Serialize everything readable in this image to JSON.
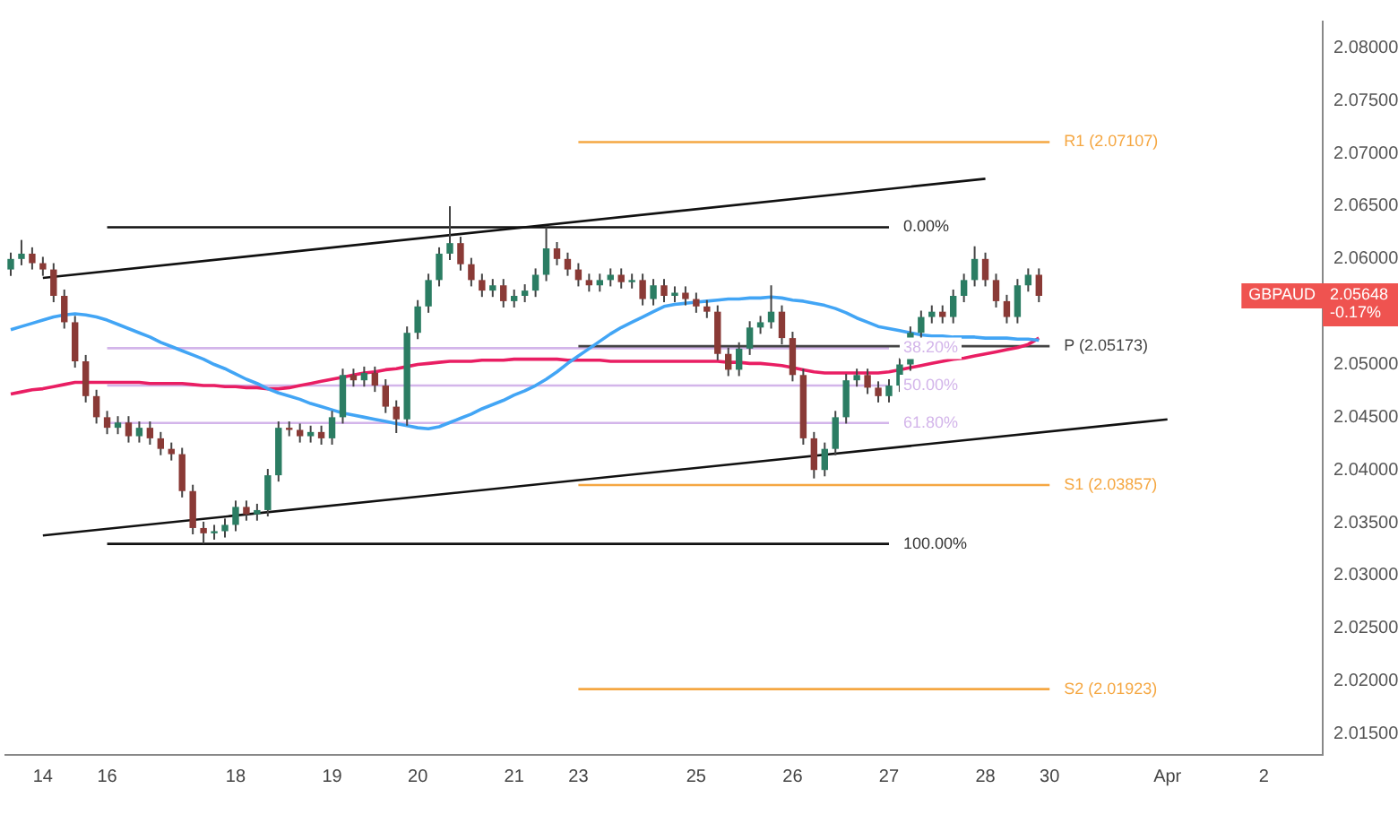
{
  "chart_data": {
    "type": "candlestick",
    "categories": [
      null,
      null,
      null,
      "14",
      null,
      null,
      null,
      null,
      null,
      "16",
      null,
      null,
      null,
      null,
      null,
      null,
      null,
      null,
      null,
      null,
      null,
      "18",
      null,
      null,
      null,
      null,
      null,
      null,
      null,
      null,
      "19",
      null,
      null,
      null,
      null,
      null,
      null,
      null,
      "20",
      null,
      null,
      null,
      null,
      null,
      null,
      null,
      null,
      "21",
      null,
      null,
      null,
      null,
      null,
      "23",
      null,
      null,
      null,
      null,
      null,
      null,
      null,
      null,
      null,
      null,
      "25",
      null,
      null,
      null,
      null,
      null,
      null,
      null,
      null,
      "26",
      null,
      null,
      null,
      null,
      null,
      null,
      null,
      null,
      "27",
      null,
      null,
      null,
      null,
      null,
      null,
      null,
      null,
      "28",
      null,
      null,
      null,
      null,
      null,
      "30",
      null,
      null,
      null,
      null,
      null,
      null,
      null,
      null,
      null,
      null,
      "Apr",
      null,
      null,
      null,
      null,
      null,
      null,
      null,
      null,
      "2",
      null,
      null,
      null,
      null,
      null
    ],
    "ohlc": [
      [
        2.059,
        2.0606,
        2.0584,
        2.06
      ],
      [
        2.06,
        2.0618,
        2.0594,
        2.0605
      ],
      [
        2.0605,
        2.0611,
        2.059,
        2.0596
      ],
      [
        2.0596,
        2.0602,
        2.0584,
        2.059
      ],
      [
        2.059,
        2.0596,
        2.0559,
        2.0565
      ],
      [
        2.0565,
        2.0571,
        2.0534,
        2.054
      ],
      [
        2.054,
        2.0546,
        2.0497,
        2.0503
      ],
      [
        2.0503,
        2.0509,
        2.0464,
        2.047
      ],
      [
        2.047,
        2.0476,
        2.0444,
        2.045
      ],
      [
        2.045,
        2.0456,
        2.0434,
        2.044
      ],
      [
        2.044,
        2.0451,
        2.0434,
        2.0445
      ],
      [
        2.0445,
        2.0451,
        2.0426,
        2.0432
      ],
      [
        2.0432,
        2.0446,
        2.0426,
        2.044
      ],
      [
        2.044,
        2.0446,
        2.0424,
        2.043
      ],
      [
        2.043,
        2.0436,
        2.0414,
        2.042
      ],
      [
        2.042,
        2.0426,
        2.0409,
        2.0415
      ],
      [
        2.0415,
        2.0421,
        2.0374,
        2.038
      ],
      [
        2.038,
        2.0386,
        2.0339,
        2.0345
      ],
      [
        2.0345,
        2.0351,
        2.033,
        2.034
      ],
      [
        2.034,
        2.0348,
        2.0334,
        2.0342
      ],
      [
        2.0342,
        2.0354,
        2.0336,
        2.0348
      ],
      [
        2.0348,
        2.0371,
        2.0342,
        2.0365
      ],
      [
        2.0365,
        2.0371,
        2.0352,
        2.0358
      ],
      [
        2.0358,
        2.0368,
        2.0352,
        2.0362
      ],
      [
        2.0362,
        2.0401,
        2.0356,
        2.0395
      ],
      [
        2.0395,
        2.0446,
        2.0389,
        2.044
      ],
      [
        2.044,
        2.0446,
        2.0432,
        2.0438
      ],
      [
        2.0438,
        2.0444,
        2.0426,
        2.0432
      ],
      [
        2.0432,
        2.0442,
        2.0426,
        2.0436
      ],
      [
        2.0436,
        2.0442,
        2.0424,
        2.043
      ],
      [
        2.043,
        2.0456,
        2.0424,
        2.045
      ],
      [
        2.045,
        2.0496,
        2.0444,
        2.049
      ],
      [
        2.049,
        2.0496,
        2.0479,
        2.0485
      ],
      [
        2.0485,
        2.0498,
        2.0479,
        2.0492
      ],
      [
        2.0492,
        2.0498,
        2.0474,
        2.048
      ],
      [
        2.048,
        2.0486,
        2.0454,
        2.046
      ],
      [
        2.046,
        2.0466,
        2.0435,
        2.0448
      ],
      [
        2.0448,
        2.0536,
        2.0442,
        2.053
      ],
      [
        2.053,
        2.0561,
        2.0524,
        2.0555
      ],
      [
        2.0555,
        2.0586,
        2.0549,
        2.058
      ],
      [
        2.058,
        2.0611,
        2.0574,
        2.0605
      ],
      [
        2.0605,
        2.065,
        2.0599,
        2.0615
      ],
      [
        2.0615,
        2.0621,
        2.0589,
        2.0595
      ],
      [
        2.0595,
        2.0601,
        2.0574,
        2.058
      ],
      [
        2.058,
        2.0586,
        2.0564,
        2.057
      ],
      [
        2.057,
        2.0581,
        2.0564,
        2.0575
      ],
      [
        2.0575,
        2.0581,
        2.0554,
        2.056
      ],
      [
        2.056,
        2.0571,
        2.0554,
        2.0565
      ],
      [
        2.0565,
        2.0576,
        2.0559,
        2.057
      ],
      [
        2.057,
        2.0591,
        2.0564,
        2.0585
      ],
      [
        2.0585,
        2.063,
        2.0579,
        2.061
      ],
      [
        2.061,
        2.0616,
        2.0594,
        2.06
      ],
      [
        2.06,
        2.0606,
        2.0584,
        2.059
      ],
      [
        2.059,
        2.0596,
        2.0574,
        2.058
      ],
      [
        2.058,
        2.0586,
        2.0569,
        2.0575
      ],
      [
        2.0575,
        2.0586,
        2.0569,
        2.058
      ],
      [
        2.058,
        2.0591,
        2.0574,
        2.0585
      ],
      [
        2.0585,
        2.0591,
        2.0572,
        2.0578
      ],
      [
        2.0578,
        2.0586,
        2.0572,
        2.058
      ],
      [
        2.058,
        2.0586,
        2.0556,
        2.0562
      ],
      [
        2.0562,
        2.0581,
        2.0556,
        2.0575
      ],
      [
        2.0575,
        2.0581,
        2.0559,
        2.0565
      ],
      [
        2.0565,
        2.0574,
        2.0559,
        2.0568
      ],
      [
        2.0568,
        2.0574,
        2.0556,
        2.0562
      ],
      [
        2.0562,
        2.0568,
        2.0549,
        2.0555
      ],
      [
        2.0555,
        2.0561,
        2.0544,
        2.055
      ],
      [
        2.055,
        2.0556,
        2.0504,
        2.051
      ],
      [
        2.051,
        2.0516,
        2.0489,
        2.0495
      ],
      [
        2.0495,
        2.0521,
        2.0489,
        2.0515
      ],
      [
        2.0515,
        2.0541,
        2.0509,
        2.0535
      ],
      [
        2.0535,
        2.0546,
        2.0529,
        2.054
      ],
      [
        2.054,
        2.0575,
        2.0534,
        2.055
      ],
      [
        2.055,
        2.0556,
        2.0519,
        2.0525
      ],
      [
        2.0525,
        2.0531,
        2.0484,
        2.049
      ],
      [
        2.049,
        2.0496,
        2.0424,
        2.043
      ],
      [
        2.043,
        2.0436,
        2.0392,
        2.04
      ],
      [
        2.04,
        2.0426,
        2.0394,
        2.042
      ],
      [
        2.042,
        2.0456,
        2.0414,
        2.045
      ],
      [
        2.045,
        2.0491,
        2.0444,
        2.0485
      ],
      [
        2.0485,
        2.0496,
        2.0479,
        2.049
      ],
      [
        2.049,
        2.0496,
        2.0472,
        2.0478
      ],
      [
        2.0478,
        2.0484,
        2.0464,
        2.047
      ],
      [
        2.047,
        2.0486,
        2.0464,
        2.048
      ],
      [
        2.048,
        2.0506,
        2.0474,
        2.05
      ],
      [
        2.05,
        2.0536,
        2.0494,
        2.053
      ],
      [
        2.053,
        2.0551,
        2.0524,
        2.0545
      ],
      [
        2.0545,
        2.0556,
        2.0539,
        2.055
      ],
      [
        2.055,
        2.0556,
        2.0539,
        2.0545
      ],
      [
        2.0545,
        2.0571,
        2.0539,
        2.0565
      ],
      [
        2.0565,
        2.0586,
        2.0559,
        2.058
      ],
      [
        2.058,
        2.0612,
        2.0574,
        2.06
      ],
      [
        2.06,
        2.0606,
        2.0574,
        2.058
      ],
      [
        2.058,
        2.0586,
        2.0554,
        2.056
      ],
      [
        2.056,
        2.0566,
        2.0539,
        2.0545
      ],
      [
        2.0545,
        2.0581,
        2.0539,
        2.0575
      ],
      [
        2.0575,
        2.0591,
        2.0569,
        2.0585
      ],
      [
        2.0585,
        2.0591,
        2.0559,
        2.0565
      ],
      null,
      null,
      null,
      null,
      null,
      null,
      null,
      null,
      null,
      null,
      null,
      null,
      null,
      null,
      null,
      null,
      null,
      null,
      null,
      null,
      null,
      null,
      null,
      null,
      null,
      null
    ],
    "series": [
      {
        "type": "line",
        "color": "#42a5f5",
        "values": [
          2.0533,
          2.0536,
          2.0539,
          2.0542,
          2.0545,
          2.0547,
          2.0548,
          2.0547,
          2.0545,
          2.0542,
          2.0538,
          2.0534,
          2.053,
          2.0526,
          2.0521,
          2.0517,
          2.0513,
          2.0509,
          2.0505,
          2.05,
          2.0496,
          2.0491,
          2.0486,
          2.0482,
          2.0477,
          2.0473,
          2.047,
          2.0467,
          2.0463,
          2.046,
          2.0457,
          2.0454,
          2.0452,
          2.045,
          2.0448,
          2.0446,
          2.0444,
          2.0442,
          2.044,
          2.0439,
          2.0441,
          2.0445,
          2.0449,
          2.0453,
          2.0458,
          2.0462,
          2.0466,
          2.0471,
          2.0475,
          2.048,
          2.0486,
          2.0493,
          2.0501,
          2.0508,
          2.0515,
          2.0522,
          2.0529,
          2.0535,
          2.054,
          2.0545,
          2.055,
          2.0555,
          2.0557,
          2.0558,
          2.0559,
          2.056,
          2.0561,
          2.0562,
          2.0562,
          2.0563,
          2.0563,
          2.0564,
          2.0563,
          2.0561,
          2.056,
          2.0558,
          2.0556,
          2.0553,
          2.0549,
          2.0544,
          2.054,
          2.0536,
          2.0534,
          2.0532,
          2.053,
          2.0528,
          2.0527,
          2.0527,
          2.0526,
          2.0526,
          2.0526,
          2.0525,
          2.0525,
          2.0525,
          2.0524,
          2.0524,
          2.0523,
          null,
          null,
          null,
          null,
          null,
          null,
          null,
          null,
          null,
          null,
          null,
          null,
          null,
          null,
          null,
          null,
          null,
          null,
          null,
          null,
          null,
          null,
          null,
          null,
          null,
          null
        ]
      },
      {
        "type": "line",
        "color": "#e91e63",
        "values": [
          2.0472,
          2.0474,
          2.0476,
          2.0477,
          2.0479,
          2.0481,
          2.0483,
          2.0483,
          2.0483,
          2.0483,
          2.0483,
          2.0483,
          2.0483,
          2.0482,
          2.0482,
          2.0482,
          2.0482,
          2.0481,
          2.048,
          2.048,
          2.0479,
          2.0479,
          2.0478,
          2.0478,
          2.0477,
          2.0477,
          2.0478,
          2.048,
          2.0482,
          2.0484,
          2.0486,
          2.0488,
          2.049,
          2.0492,
          2.0493,
          2.0495,
          2.0496,
          2.0498,
          2.05,
          2.0501,
          2.0502,
          2.0503,
          2.0503,
          2.0503,
          2.0504,
          2.0504,
          2.0504,
          2.0505,
          2.0505,
          2.0505,
          2.0505,
          2.0505,
          2.0504,
          2.0504,
          2.0504,
          2.0504,
          2.0503,
          2.0503,
          2.0503,
          2.0503,
          2.0503,
          2.0503,
          2.0503,
          2.0503,
          2.0503,
          2.0503,
          2.0503,
          2.0502,
          2.0502,
          2.0501,
          2.0501,
          2.05,
          2.0499,
          2.0497,
          2.0495,
          2.0493,
          2.0492,
          2.0492,
          2.0492,
          2.0492,
          2.0492,
          2.0492,
          2.0493,
          2.0495,
          2.0497,
          2.0499,
          2.0501,
          2.0503,
          2.0505,
          2.0506,
          2.0508,
          2.051,
          2.0512,
          2.0514,
          2.0516,
          2.0519,
          2.0525,
          null,
          null,
          null,
          null,
          null,
          null,
          null,
          null,
          null,
          null,
          null,
          null,
          null,
          null,
          null,
          null,
          null,
          null,
          null,
          null,
          null,
          null,
          null,
          null,
          null,
          null
        ]
      },
      {
        "type": "line",
        "color": "#f5a742",
        "x": [
          "23",
          "30"
        ],
        "values": [
          2.07107,
          2.07107
        ]
      },
      {
        "type": "line",
        "color": "#444444",
        "x": [
          "23",
          "30"
        ],
        "values": [
          2.05173,
          2.05173
        ]
      },
      {
        "type": "line",
        "color": "#f5a742",
        "x": [
          "23",
          "30"
        ],
        "values": [
          2.03857,
          2.03857
        ]
      },
      {
        "type": "line",
        "color": "#f5a742",
        "x": [
          "23",
          "30"
        ],
        "values": [
          2.01923,
          2.01923
        ]
      },
      {
        "type": "line",
        "color": "#111111",
        "x": [
          "16",
          "27"
        ],
        "values": [
          2.063,
          2.063
        ]
      },
      {
        "type": "line",
        "color": "#d3b5ea",
        "x": [
          "16",
          "27"
        ],
        "values": [
          2.05154,
          2.05154
        ]
      },
      {
        "type": "line",
        "color": "#d3b5ea",
        "x": [
          "16",
          "27"
        ],
        "values": [
          2.048,
          2.048
        ]
      },
      {
        "type": "line",
        "color": "#d3b5ea",
        "x": [
          "16",
          "27"
        ],
        "values": [
          2.04446,
          2.04446
        ]
      },
      {
        "type": "line",
        "color": "#111111",
        "x": [
          "16",
          "27"
        ],
        "values": [
          2.033,
          2.033
        ]
      },
      {
        "type": "line",
        "color": "#111111",
        "x": [
          "14",
          "28"
        ],
        "values": [
          2.0582,
          2.0676
        ]
      },
      {
        "type": "line",
        "color": "#111111",
        "x": [
          "14",
          "Apr"
        ],
        "values": [
          2.0338,
          2.0448
        ]
      }
    ],
    "annotations": [
      {
        "text": "R1 (2.07107)",
        "x": "30",
        "y": 2.07107
      },
      {
        "text": "P (2.05173)",
        "x": "30",
        "y": 2.05173
      },
      {
        "text": "S1 (2.03857)",
        "x": "30",
        "y": 2.03857
      },
      {
        "text": "S2 (2.01923)",
        "x": "30",
        "y": 2.01923
      },
      {
        "text": "0.00%",
        "x": "27",
        "y": 2.063
      },
      {
        "text": "38.20%",
        "x": "27",
        "y": 2.05154
      },
      {
        "text": "50.00%",
        "x": "27",
        "y": 2.048
      },
      {
        "text": "61.80%",
        "x": "27",
        "y": 2.04446
      },
      {
        "text": "100.00%",
        "x": "27",
        "y": 2.033
      },
      "GBPAUD",
      "2.05648\n-0.17%"
    ],
    "ylim": [
      2.013,
      2.0825
    ],
    "yticks": [
      {
        "value": 2.015,
        "label": "2.01500"
      },
      {
        "value": 2.02,
        "label": "2.02000"
      },
      {
        "value": 2.025,
        "label": "2.02500"
      },
      {
        "value": 2.03,
        "label": "2.03000"
      },
      {
        "value": 2.035,
        "label": "2.03500"
      },
      {
        "value": 2.04,
        "label": "2.04000"
      },
      {
        "value": 2.045,
        "label": "2.04500"
      },
      {
        "value": 2.05,
        "label": "2.05000"
      },
      {
        "value": 2.06,
        "label": "2.06000"
      },
      {
        "value": 2.065,
        "label": "2.06500"
      },
      {
        "value": 2.07,
        "label": "2.07000"
      },
      {
        "value": 2.075,
        "label": "2.07500"
      },
      {
        "value": 2.08,
        "label": "2.08000"
      }
    ],
    "grid": false,
    "legend": false,
    "marker": "none",
    "line_style": "solid"
  }
}
